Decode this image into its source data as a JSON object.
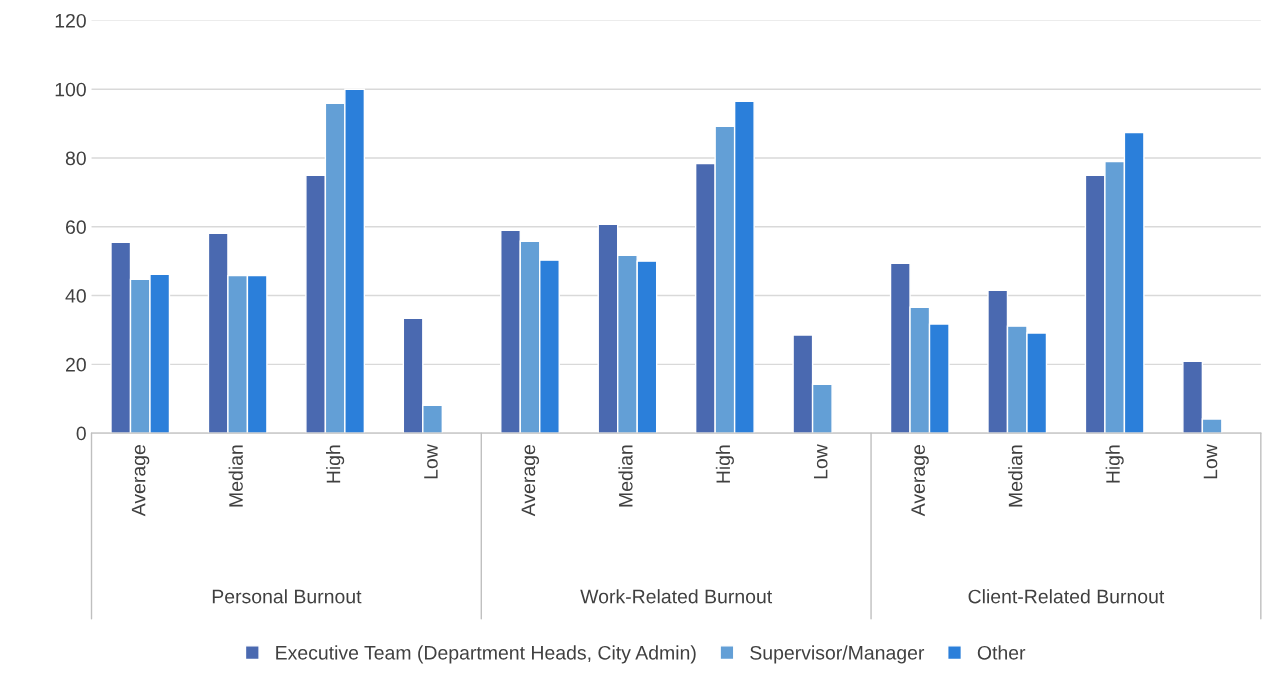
{
  "chart_data": {
    "type": "bar",
    "categories": [
      "Average",
      "Median",
      "High",
      "Low",
      "Average",
      "Median",
      "High",
      "Low",
      "Average",
      "Median",
      "High",
      "Low"
    ],
    "series": [
      {
        "name": "Executive Team (Department Heads, City Admin)",
        "color": "#4a69b0",
        "values": [
          55.5,
          58.1,
          75,
          33.4,
          59,
          60.7,
          78.4,
          28.5,
          49.4,
          41.5,
          75,
          20.9
        ]
      },
      {
        "name": "Supervisor/Manager",
        "color": "#639fd6",
        "values": [
          44.7,
          45.8,
          95.9,
          8.1,
          55.8,
          51.7,
          89.2,
          14.2,
          36.6,
          31.1,
          79,
          4.1
        ]
      },
      {
        "name": "Other",
        "color": "#2b7fda",
        "values": [
          46.2,
          45.8,
          100,
          null,
          50.3,
          50,
          96.5,
          null,
          31.7,
          29.1,
          87.4,
          null
        ]
      }
    ],
    "annotations": [
      "Personal Burnout",
      "Work-Related Burnout",
      "Client-Related Burnout"
    ],
    "ylim": [
      0,
      120
    ],
    "yticks": [
      0,
      20,
      40,
      60,
      80,
      100,
      120
    ],
    "grid": "y",
    "legend": "bottom"
  }
}
